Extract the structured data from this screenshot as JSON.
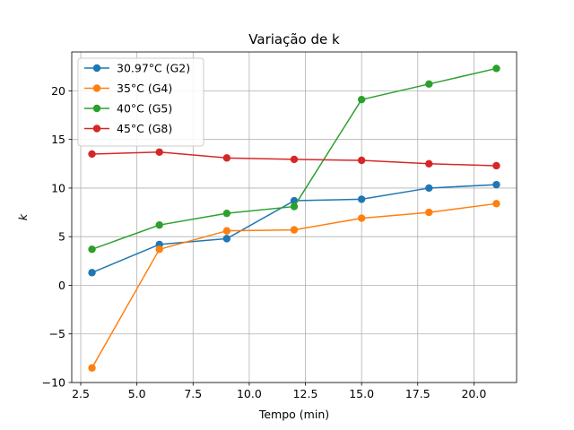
{
  "chart_data": {
    "type": "line",
    "title": "Variação de k",
    "xlabel": "Tempo (min)",
    "ylabel": "k",
    "xlim": [
      2.1,
      21.9
    ],
    "ylim": [
      -10,
      24
    ],
    "xticks": [
      2.5,
      5.0,
      7.5,
      10.0,
      12.5,
      15.0,
      17.5,
      20.0
    ],
    "xtick_labels": [
      "2.5",
      "5.0",
      "7.5",
      "10.0",
      "12.5",
      "15.0",
      "17.5",
      "20.0"
    ],
    "yticks": [
      -10,
      -5,
      0,
      5,
      10,
      15,
      20
    ],
    "ytick_labels": [
      "−10",
      "−5",
      "0",
      "5",
      "10",
      "15",
      "20"
    ],
    "grid": true,
    "legend_position": "upper-left",
    "x": [
      3,
      6,
      9,
      12,
      15,
      18,
      21
    ],
    "series": [
      {
        "name": "30.97°C (G2)",
        "color": "#1f77b4",
        "values": [
          1.3,
          4.2,
          4.8,
          8.7,
          8.85,
          10.0,
          10.35
        ]
      },
      {
        "name": "35°C (G4)",
        "color": "#ff7f0e",
        "values": [
          -8.5,
          3.7,
          5.6,
          5.7,
          6.9,
          7.5,
          8.4
        ]
      },
      {
        "name": "40°C (G5)",
        "color": "#2ca02c",
        "values": [
          3.7,
          6.2,
          7.4,
          8.1,
          19.1,
          20.7,
          22.3
        ]
      },
      {
        "name": "45°C (G8)",
        "color": "#d62728",
        "values": [
          13.5,
          13.7,
          13.1,
          12.95,
          12.85,
          12.5,
          12.3
        ]
      }
    ]
  }
}
